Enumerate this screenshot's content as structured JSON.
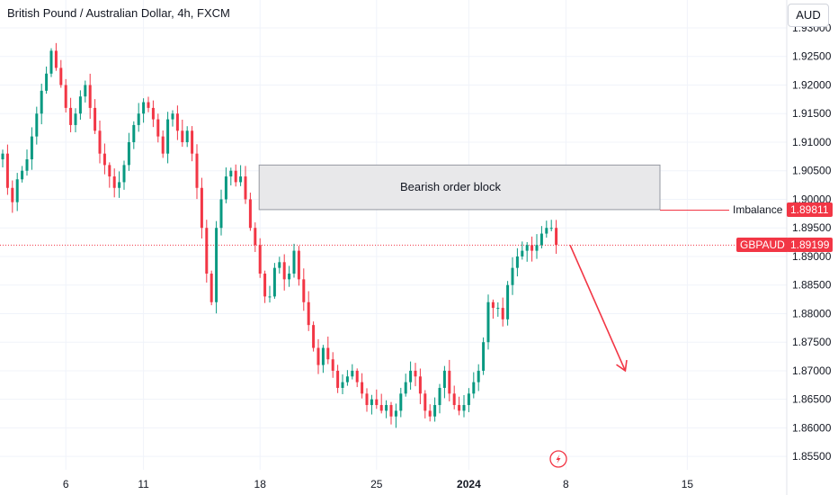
{
  "header": {
    "title": "British Pound / Australian Dollar, 4h, FXCM",
    "currency": "AUD"
  },
  "annotations": {
    "order_block_label": "Bearish order block",
    "imbalance_label": "Imbalance",
    "imbalance_price": "1.89811",
    "symbol_label": "GBPAUD",
    "last_price": "1.89199"
  },
  "colors": {
    "up": "#089981",
    "down": "#f23645",
    "arrow": "#f23645",
    "block_fill": "#e8e8ea",
    "block_border": "#9598a1"
  },
  "chart_data": {
    "type": "candlestick",
    "symbol": "GBPAUD",
    "timeframe": "4h",
    "source": "FXCM",
    "y_ticks": [
      "1.85500",
      "1.86000",
      "1.86500",
      "1.87000",
      "1.87500",
      "1.88000",
      "1.88500",
      "1.89000",
      "1.89500",
      "1.90000",
      "1.90500",
      "1.91000",
      "1.91500",
      "1.92000",
      "1.92500",
      "1.93000"
    ],
    "y_range": [
      1.8545,
      1.9318
    ],
    "x_ticks": [
      {
        "label": "6",
        "i": 13,
        "bold": false
      },
      {
        "label": "11",
        "i": 29,
        "bold": false
      },
      {
        "label": "18",
        "i": 53,
        "bold": false
      },
      {
        "label": "25",
        "i": 77,
        "bold": false
      },
      {
        "label": "2024",
        "i": 96,
        "bold": true
      },
      {
        "label": "8",
        "i": 116,
        "bold": false
      },
      {
        "label": "15",
        "i": 141,
        "bold": false
      }
    ],
    "candle_count": 115,
    "closes": [
      1.908,
      1.902,
      1.8995,
      1.9035,
      1.905,
      1.907,
      1.911,
      1.915,
      1.919,
      1.922,
      1.926,
      1.923,
      1.92,
      1.916,
      1.913,
      1.915,
      1.918,
      1.92,
      1.916,
      1.912,
      1.908,
      1.906,
      1.904,
      1.902,
      1.903,
      1.906,
      1.91,
      1.913,
      1.915,
      1.917,
      1.916,
      1.914,
      1.911,
      1.908,
      1.914,
      1.915,
      1.912,
      1.91,
      1.912,
      1.908,
      1.902,
      1.895,
      1.887,
      1.882,
      1.895,
      1.9,
      1.904,
      1.905,
      1.903,
      1.904,
      1.9,
      1.895,
      1.892,
      1.887,
      1.883,
      1.883,
      1.888,
      1.889,
      1.886,
      1.887,
      1.891,
      1.886,
      1.882,
      1.878,
      1.874,
      1.871,
      1.874,
      1.872,
      1.87,
      1.867,
      1.868,
      1.869,
      1.87,
      1.868,
      1.866,
      1.864,
      1.865,
      1.864,
      1.863,
      1.864,
      1.862,
      1.863,
      1.866,
      1.868,
      1.87,
      1.869,
      1.866,
      1.863,
      1.862,
      1.864,
      1.867,
      1.87,
      1.866,
      1.864,
      1.863,
      1.864,
      1.866,
      1.868,
      1.87,
      1.875,
      1.882,
      1.881,
      1.881,
      1.879,
      1.885,
      1.888,
      1.89,
      1.891,
      1.892,
      1.891,
      1.892,
      1.894,
      1.895,
      1.895,
      1.892
    ],
    "order_block": {
      "top": 1.906,
      "bottom": 1.8982,
      "from_i": 53,
      "to_i": 143
    },
    "imbalance_level": 1.89811,
    "last_price_level": 1.89199,
    "projection": {
      "from_i": 115,
      "from_price": 1.892,
      "to_i": 126,
      "to_price": 1.87
    }
  }
}
